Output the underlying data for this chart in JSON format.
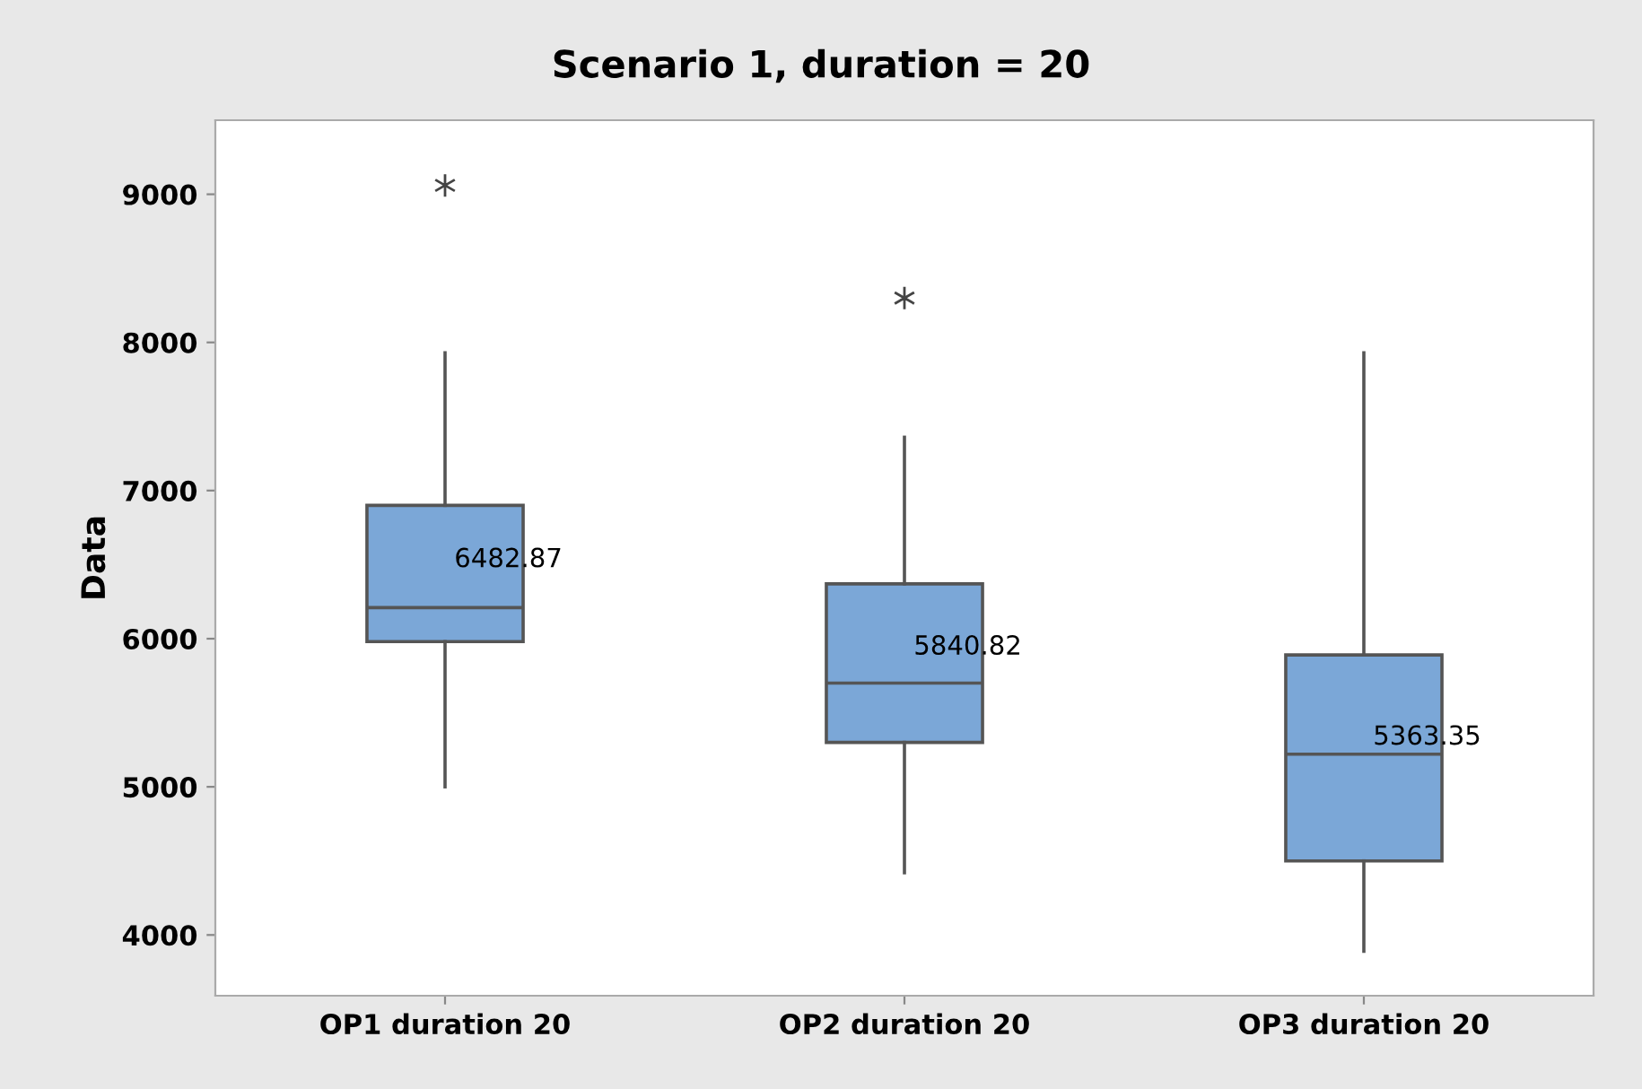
{
  "chart_data": {
    "type": "box",
    "title": "Scenario 1, duration = 20",
    "ylabel": "Data",
    "categories": [
      "OP1 duration 20",
      "OP2 duration 20",
      "OP3 duration 20"
    ],
    "boxes": [
      {
        "low": 5000,
        "q1": 5980,
        "median": 6210,
        "q3": 6900,
        "high": 7930,
        "outliers": [
          9060
        ]
      },
      {
        "low": 4420,
        "q1": 5300,
        "median": 5700,
        "q3": 6370,
        "high": 7360,
        "outliers": [
          8300
        ]
      },
      {
        "low": 3890,
        "q1": 4500,
        "median": 5220,
        "q3": 5890,
        "high": 7930
      }
    ],
    "color": "#7ba7d7",
    "annotations": [
      "6482.87",
      "5840.82",
      "5363.35"
    ],
    "ylim": [
      3590,
      9500
    ],
    "yticks": [
      4000,
      5000,
      6000,
      7000,
      8000,
      9000
    ],
    "grid": false,
    "legend": false
  }
}
